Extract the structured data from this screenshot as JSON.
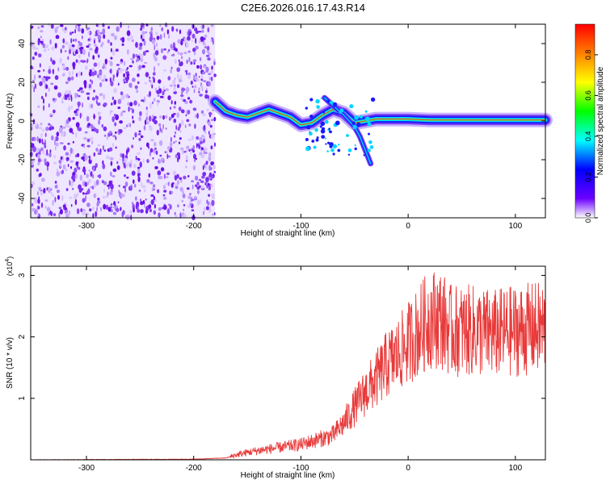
{
  "title": "C2E6.2026.016.17.43.R14",
  "chart_data": [
    {
      "type": "heatmap",
      "xlabel": "Height of straight line (km)",
      "ylabel": "Frequency (Hz)",
      "xlim": [
        -352,
        128
      ],
      "ylim": [
        -50,
        50
      ],
      "xticks": [
        -300,
        -200,
        -100,
        0,
        100
      ],
      "yticks": [
        -40,
        -20,
        0,
        20,
        40
      ],
      "noise_region_x": [
        -352,
        -180
      ],
      "signal_trace": {
        "x": [
          -180,
          -170,
          -160,
          -150,
          -140,
          -130,
          -120,
          -110,
          -100,
          -90,
          -80,
          -70,
          -60,
          -50,
          -40,
          -30,
          -20,
          -10,
          0,
          20,
          40,
          60,
          80,
          100,
          128
        ],
        "y": [
          10,
          5,
          3,
          2,
          4,
          6,
          4,
          2,
          -2,
          -1,
          3,
          6,
          4,
          -1,
          0,
          1,
          1,
          1,
          1,
          0.5,
          0.5,
          0.5,
          0.5,
          0.5,
          0.5
        ]
      },
      "colorbar": {
        "label": "Normalized spectral amplitude",
        "range": [
          0,
          0.95
        ],
        "ticks": [
          "0.0",
          "0.2",
          "0.4",
          "0.6",
          "0.8"
        ]
      }
    },
    {
      "type": "line",
      "xlabel": "Height of straight line (km)",
      "ylabel": "SNR (10 * v/v)",
      "scale_label": "(x10",
      "scale_exp": "4",
      "ylim": [
        0,
        3.15
      ],
      "yticks": [
        1,
        2,
        3
      ],
      "xlim": [
        -352,
        128
      ],
      "xticks": [
        -300,
        -200,
        -100,
        0,
        100
      ],
      "color": "#e83a3a",
      "series": [
        {
          "x": [
            -352,
            -200,
            -170,
            -160,
            -150,
            -140,
            -120,
            -100,
            -80,
            -70,
            -60,
            -50,
            -40,
            -30,
            -20,
            -10,
            0,
            10,
            20,
            30,
            40,
            60,
            80,
            100,
            128
          ],
          "y": [
            0.0,
            0.01,
            0.03,
            0.08,
            0.12,
            0.15,
            0.2,
            0.25,
            0.35,
            0.4,
            0.6,
            0.85,
            1.1,
            1.3,
            1.55,
            1.7,
            1.9,
            2.1,
            2.3,
            2.3,
            2.1,
            2.1,
            2.05,
            2.1,
            2.15
          ]
        }
      ]
    }
  ]
}
